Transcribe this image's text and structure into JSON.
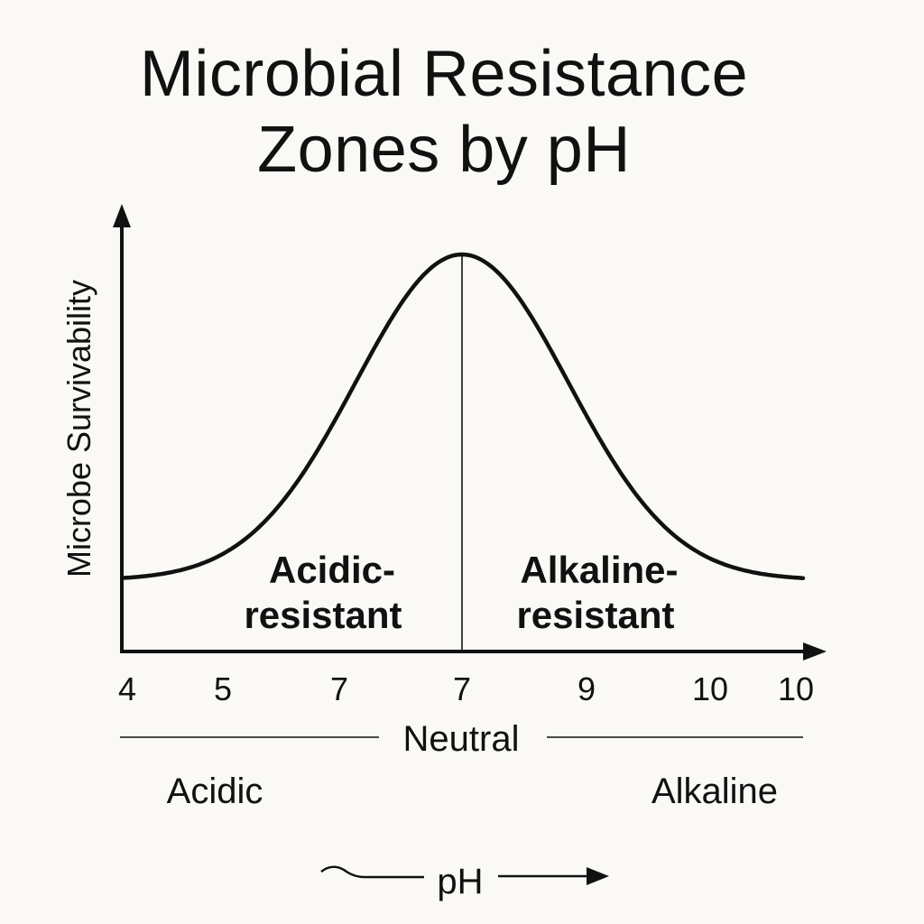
{
  "title_lines": [
    "Microbial Resistance",
    "Zones by pH"
  ],
  "chart_data": {
    "type": "line",
    "title": "Microbial Resistance Zones by pH",
    "ylabel": "Microbe Survivability",
    "xlabel": "pH",
    "x_tick_labels": [
      "4",
      "5",
      "7",
      "7",
      "9",
      "10",
      "10"
    ],
    "series": [
      {
        "name": "Microbe survivability",
        "curve": "bell",
        "peak_tick_index": 3,
        "baseline_level": 0.18,
        "peak_level": 1.0
      }
    ],
    "divider_tick_index": 3,
    "zones": [
      {
        "lines": [
          "Acidic-",
          "resistant"
        ],
        "side": "left"
      },
      {
        "lines": [
          "Alkaline-",
          "resistant"
        ],
        "side": "right"
      }
    ],
    "scale_labels": {
      "neutral": "Neutral",
      "left": "Acidic",
      "right": "Alkaline"
    },
    "ph_arrow_label": "pH",
    "colors": {
      "background": "#faf9f6",
      "ink": "#111111"
    }
  }
}
